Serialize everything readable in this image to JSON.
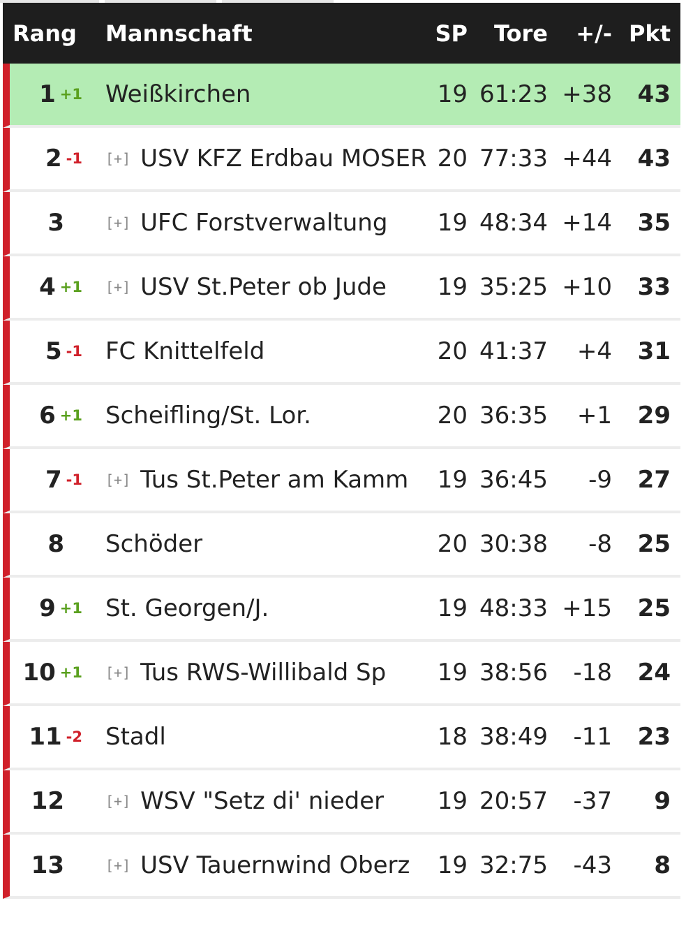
{
  "header": {
    "rang": "Rang",
    "mannschaft": "Mannschaft",
    "sp": "SP",
    "tore": "Tore",
    "diff": "+/-",
    "pkt": "Pkt"
  },
  "expand_label": "[+]",
  "colors": {
    "header_bg": "#1e1e1e",
    "accent_red": "#d0202a",
    "highlight_green": "#b4ecb4",
    "rank_up": "#5aa01e",
    "rank_down": "#d0202a"
  },
  "rows": [
    {
      "rank": "1",
      "change": "+1",
      "dir": "up",
      "expand": false,
      "team": "Weißkirchen",
      "sp": "19",
      "tore": "61:23",
      "diff": "+38",
      "pkt": "43",
      "highlight": true
    },
    {
      "rank": "2",
      "change": "-1",
      "dir": "down",
      "expand": true,
      "team": "USV KFZ Erdbau MOSER",
      "sp": "20",
      "tore": "77:33",
      "diff": "+44",
      "pkt": "43"
    },
    {
      "rank": "3",
      "change": "",
      "dir": "",
      "expand": true,
      "team": "UFC Forstverwaltung",
      "sp": "19",
      "tore": "48:34",
      "diff": "+14",
      "pkt": "35"
    },
    {
      "rank": "4",
      "change": "+1",
      "dir": "up",
      "expand": true,
      "team": "USV St.Peter ob Jude",
      "sp": "19",
      "tore": "35:25",
      "diff": "+10",
      "pkt": "33"
    },
    {
      "rank": "5",
      "change": "-1",
      "dir": "down",
      "expand": false,
      "team": "FC Knittelfeld",
      "sp": "20",
      "tore": "41:37",
      "diff": "+4",
      "pkt": "31"
    },
    {
      "rank": "6",
      "change": "+1",
      "dir": "up",
      "expand": false,
      "team": "Scheifling/St. Lor.",
      "sp": "20",
      "tore": "36:35",
      "diff": "+1",
      "pkt": "29"
    },
    {
      "rank": "7",
      "change": "-1",
      "dir": "down",
      "expand": true,
      "team": "Tus St.Peter am Kamm",
      "sp": "19",
      "tore": "36:45",
      "diff": "-9",
      "pkt": "27"
    },
    {
      "rank": "8",
      "change": "",
      "dir": "",
      "expand": false,
      "team": "Schöder",
      "sp": "20",
      "tore": "30:38",
      "diff": "-8",
      "pkt": "25"
    },
    {
      "rank": "9",
      "change": "+1",
      "dir": "up",
      "expand": false,
      "team": "St. Georgen/J.",
      "sp": "19",
      "tore": "48:33",
      "diff": "+15",
      "pkt": "25"
    },
    {
      "rank": "10",
      "change": "+1",
      "dir": "up",
      "expand": true,
      "team": "Tus RWS-Willibald Sp",
      "sp": "19",
      "tore": "38:56",
      "diff": "-18",
      "pkt": "24"
    },
    {
      "rank": "11",
      "change": "-2",
      "dir": "down",
      "expand": false,
      "team": "Stadl",
      "sp": "18",
      "tore": "38:49",
      "diff": "-11",
      "pkt": "23"
    },
    {
      "rank": "12",
      "change": "",
      "dir": "",
      "expand": true,
      "team": "WSV \"Setz di' nieder",
      "sp": "19",
      "tore": "20:57",
      "diff": "-37",
      "pkt": "9"
    },
    {
      "rank": "13",
      "change": "",
      "dir": "",
      "expand": true,
      "team": "USV Tauernwind Oberz",
      "sp": "19",
      "tore": "32:75",
      "diff": "-43",
      "pkt": "8"
    }
  ]
}
